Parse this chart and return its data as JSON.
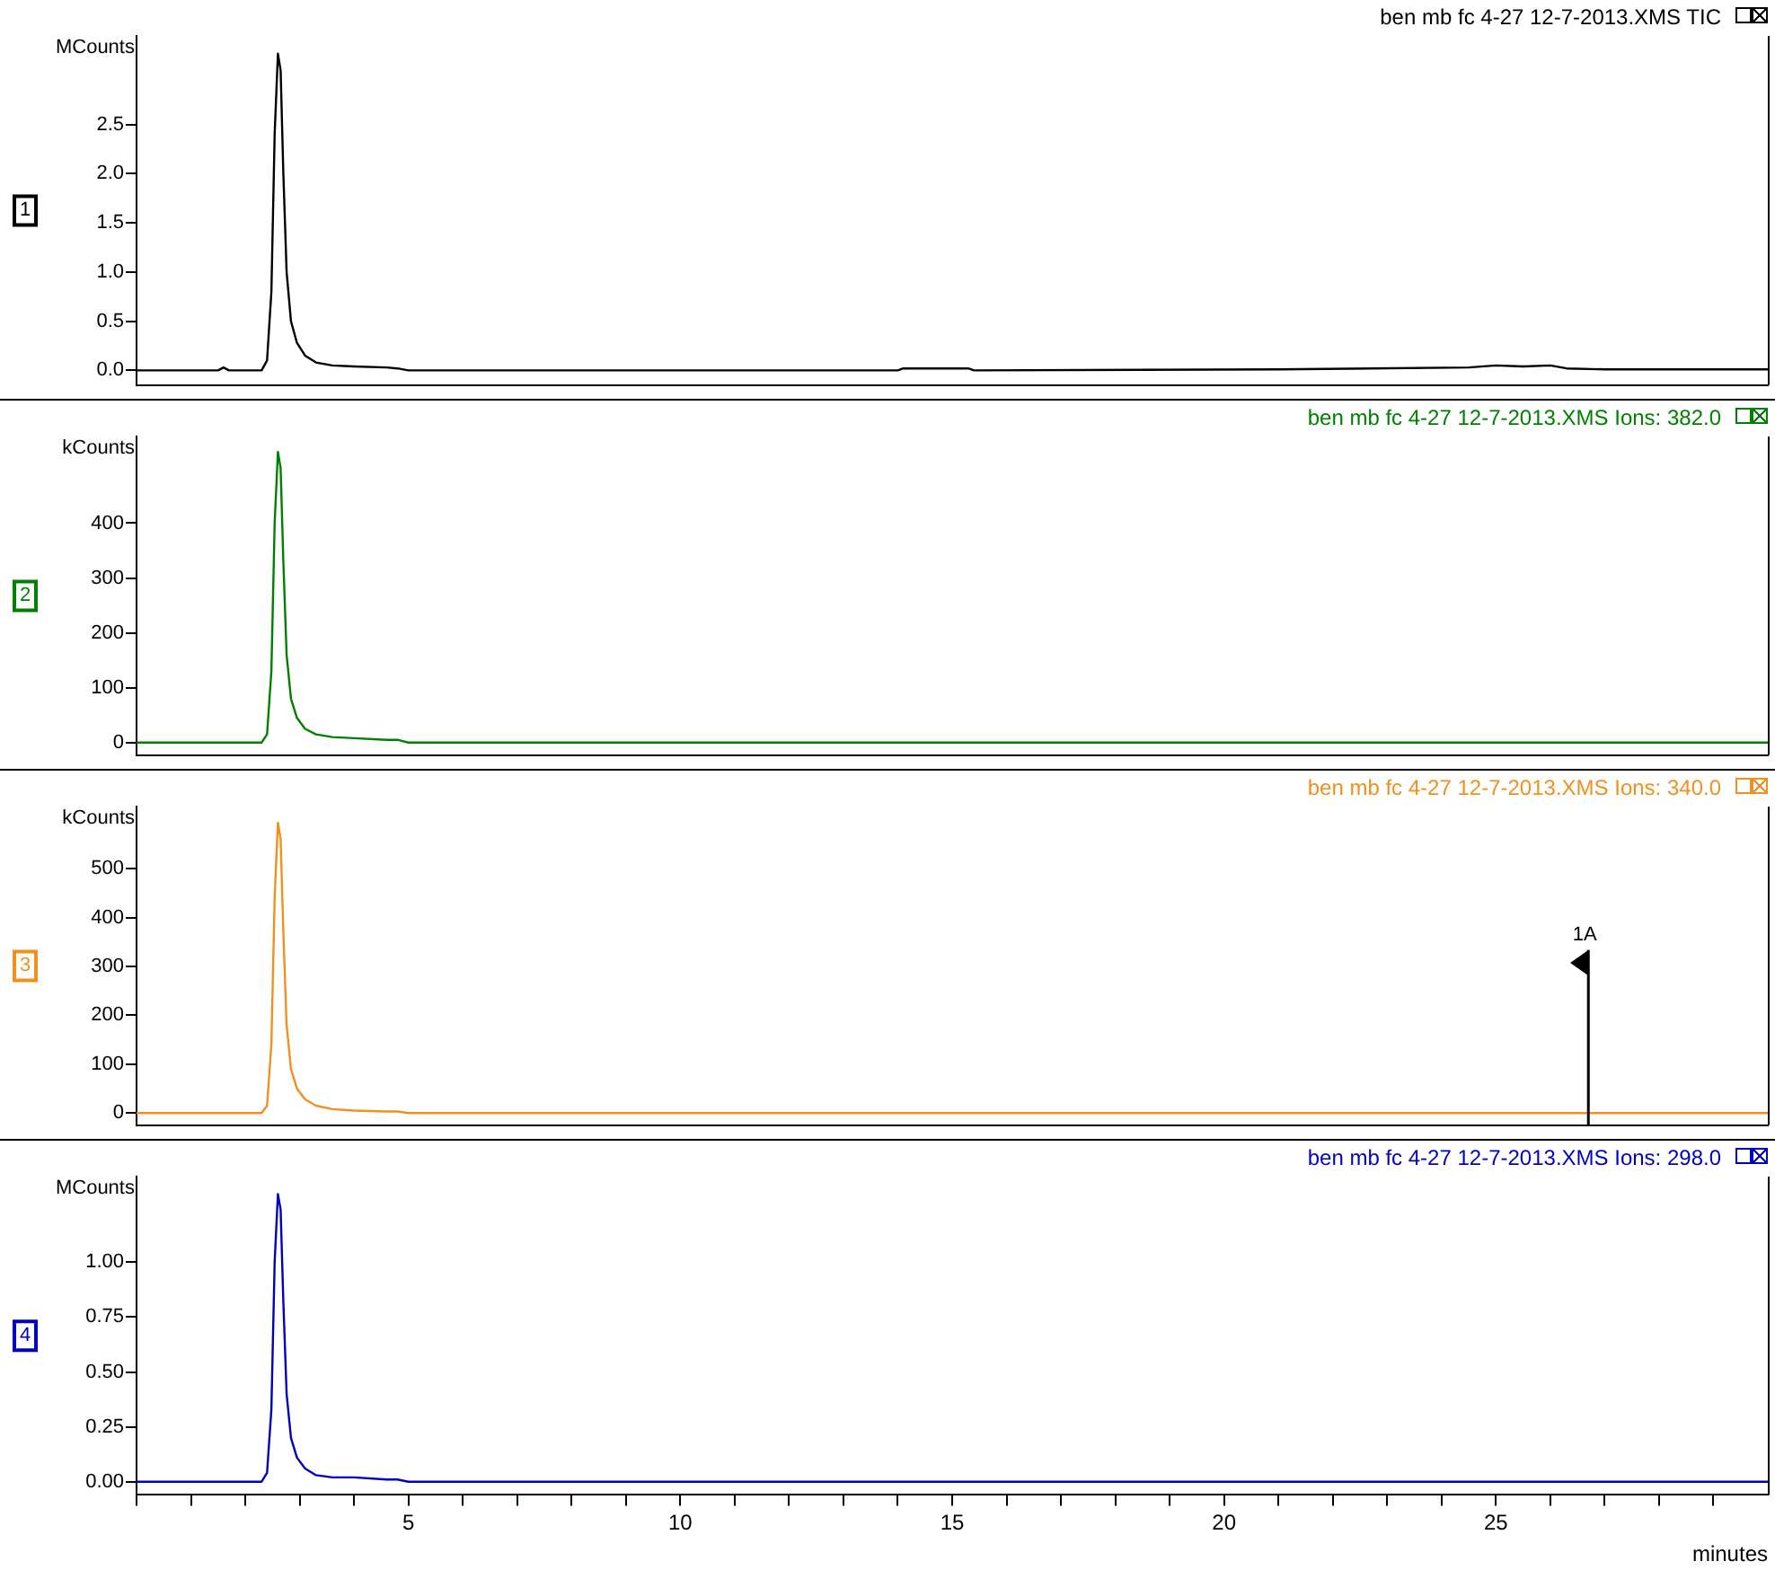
{
  "chart_data": [
    {
      "type": "line",
      "title": "ben mb fc 4-27 12-7-2013.XMS TIC",
      "ylabel": "MCounts",
      "annotations": [
        "1"
      ],
      "x": [
        0,
        1.5,
        1.6,
        1.7,
        2.3,
        2.4,
        2.48,
        2.54,
        2.6,
        2.65,
        2.7,
        2.76,
        2.84,
        2.95,
        3.1,
        3.3,
        3.6,
        4.0,
        4.6,
        4.8,
        5.0,
        14,
        14.1,
        15.3,
        15.4,
        21,
        24.5,
        25,
        25.5,
        26,
        26.3,
        27,
        30
      ],
      "series": [
        {
          "color": "#000000",
          "values": [
            0,
            0,
            0.03,
            0,
            0,
            0.1,
            0.8,
            2.4,
            3.22,
            3.05,
            2.0,
            1.0,
            0.5,
            0.28,
            0.15,
            0.08,
            0.05,
            0.04,
            0.03,
            0.02,
            0,
            0,
            0.02,
            0.02,
            0,
            0.01,
            0.03,
            0.05,
            0.04,
            0.05,
            0.02,
            0.01,
            0.01
          ]
        }
      ],
      "xlim": [
        0,
        30
      ],
      "ylim": [
        -0.15,
        3.4
      ],
      "yticks": [
        {
          "value": 0,
          "label": "0.0"
        },
        0.5,
        {
          "value": 1,
          "label": "1.0"
        },
        1.5,
        {
          "value": 2,
          "label": "2.0"
        },
        2.5
      ],
      "tick_labels": "y",
      "grid": false,
      "marker": "none"
    },
    {
      "type": "line",
      "title": "ben mb fc 4-27 12-7-2013.XMS Ions: 382.0",
      "ylabel": "kCounts",
      "annotations": [
        "2"
      ],
      "x": [
        0,
        1.5,
        1.6,
        1.7,
        2.3,
        2.4,
        2.48,
        2.54,
        2.6,
        2.65,
        2.7,
        2.76,
        2.84,
        2.95,
        3.1,
        3.3,
        3.6,
        4.0,
        4.6,
        4.8,
        5.0,
        14,
        14.1,
        15.3,
        15.4,
        21,
        24.5,
        25,
        25.5,
        26,
        26.3,
        27,
        30
      ],
      "series": [
        {
          "color": "#008000",
          "values": [
            0,
            0,
            0,
            0,
            0,
            15,
            130,
            400,
            530,
            500,
            330,
            160,
            80,
            45,
            25,
            15,
            10,
            8,
            5,
            5,
            0,
            0,
            0,
            0,
            0,
            0,
            0,
            0,
            0,
            0,
            0,
            0,
            0
          ]
        }
      ],
      "xlim": [
        0,
        30
      ],
      "ylim": [
        -23,
        558
      ],
      "yticks": [
        0,
        100,
        200,
        300,
        400
      ],
      "tick_labels": "y",
      "grid": false,
      "marker": "none"
    },
    {
      "type": "line",
      "title": "ben mb fc 4-27 12-7-2013.XMS Ions: 340.0",
      "ylabel": "kCounts",
      "annotations": [
        "3"
      ],
      "ref_lines": [
        {
          "axis": "x",
          "value": 26.7,
          "label": "1A"
        }
      ],
      "x": [
        0,
        1.5,
        1.6,
        1.7,
        2.3,
        2.4,
        2.48,
        2.54,
        2.6,
        2.65,
        2.7,
        2.76,
        2.84,
        2.95,
        3.1,
        3.3,
        3.6,
        4.0,
        4.6,
        4.8,
        5.0,
        14,
        14.1,
        15.3,
        15.4,
        21,
        24.5,
        25,
        25.5,
        26,
        26.3,
        27,
        30
      ],
      "series": [
        {
          "color": "#f0901e",
          "values": [
            0,
            0,
            0,
            0,
            0,
            15,
            140,
            440,
            594,
            560,
            370,
            180,
            90,
            50,
            28,
            15,
            8,
            5,
            3,
            3,
            0,
            0,
            0,
            0,
            0,
            0,
            0,
            0,
            0,
            0,
            0,
            0,
            0
          ]
        }
      ],
      "xlim": [
        0,
        30
      ],
      "ylim": [
        -25,
        627
      ],
      "yticks": [
        0,
        100,
        200,
        300,
        400,
        500
      ],
      "tick_labels": "y",
      "grid": false,
      "marker": "none"
    },
    {
      "type": "line",
      "title": "ben mb fc 4-27 12-7-2013.XMS Ions: 298.0",
      "ylabel": "MCounts",
      "xlabel": "minutes",
      "annotations": [
        "4"
      ],
      "x": [
        0,
        1.5,
        1.6,
        1.7,
        2.3,
        2.4,
        2.48,
        2.54,
        2.6,
        2.65,
        2.7,
        2.76,
        2.84,
        2.95,
        3.1,
        3.3,
        3.6,
        4.0,
        4.6,
        4.8,
        5.0,
        14,
        14.1,
        15.3,
        15.4,
        21,
        24.5,
        25,
        25.5,
        26,
        26.3,
        27,
        30
      ],
      "series": [
        {
          "color": "#0000c0",
          "values": [
            0,
            0,
            0,
            0,
            0,
            0.04,
            0.33,
            1.0,
            1.31,
            1.24,
            0.82,
            0.4,
            0.2,
            0.11,
            0.06,
            0.03,
            0.02,
            0.02,
            0.01,
            0.01,
            0,
            0,
            0,
            0,
            0,
            0,
            0,
            0,
            0,
            0,
            0,
            0,
            0
          ]
        }
      ],
      "xlim": [
        0,
        30
      ],
      "xticks": [
        {
          "value": 0,
          "label": null
        },
        {
          "value": 1,
          "label": null
        },
        {
          "value": 2,
          "label": null
        },
        {
          "value": 3,
          "label": null
        },
        {
          "value": 4,
          "label": null
        },
        5,
        {
          "value": 6,
          "label": null
        },
        {
          "value": 7,
          "label": null
        },
        {
          "value": 8,
          "label": null
        },
        {
          "value": 9,
          "label": null
        },
        10,
        {
          "value": 11,
          "label": null
        },
        {
          "value": 12,
          "label": null
        },
        {
          "value": 13,
          "label": null
        },
        {
          "value": 14,
          "label": null
        },
        15,
        {
          "value": 16,
          "label": null
        },
        {
          "value": 17,
          "label": null
        },
        {
          "value": 18,
          "label": null
        },
        {
          "value": 19,
          "label": null
        },
        20,
        {
          "value": 21,
          "label": null
        },
        {
          "value": 22,
          "label": null
        },
        {
          "value": 23,
          "label": null
        },
        {
          "value": 24,
          "label": null
        },
        25,
        {
          "value": 26,
          "label": null
        },
        {
          "value": 27,
          "label": null
        },
        {
          "value": 28,
          "label": null
        },
        {
          "value": 29,
          "label": null
        }
      ],
      "ylim": [
        -0.06,
        1.39
      ],
      "yticks": [
        {
          "value": 0,
          "label": "0.00"
        },
        0.25,
        {
          "value": 0.5,
          "label": "0.50"
        },
        0.75,
        {
          "value": 1,
          "label": "1.00"
        }
      ],
      "grid": false,
      "marker": "none"
    }
  ]
}
